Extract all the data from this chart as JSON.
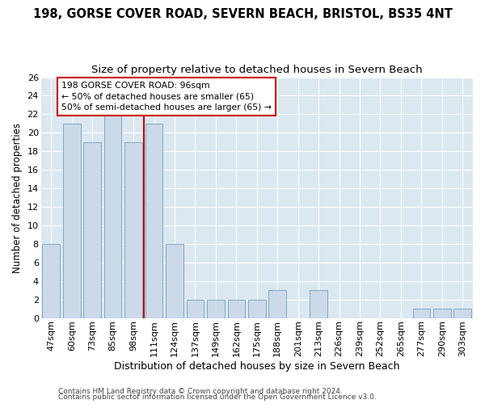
{
  "title1": "198, GORSE COVER ROAD, SEVERN BEACH, BRISTOL, BS35 4NT",
  "title2": "Size of property relative to detached houses in Severn Beach",
  "xlabel": "Distribution of detached houses by size in Severn Beach",
  "ylabel": "Number of detached properties",
  "categories": [
    "47sqm",
    "60sqm",
    "73sqm",
    "85sqm",
    "98sqm",
    "111sqm",
    "124sqm",
    "137sqm",
    "149sqm",
    "162sqm",
    "175sqm",
    "188sqm",
    "201sqm",
    "213sqm",
    "226sqm",
    "239sqm",
    "252sqm",
    "265sqm",
    "277sqm",
    "290sqm",
    "303sqm"
  ],
  "values": [
    8,
    21,
    19,
    22,
    19,
    21,
    8,
    2,
    2,
    2,
    2,
    3,
    0,
    3,
    0,
    0,
    0,
    0,
    1,
    1,
    1
  ],
  "bar_color": "#ccd9e8",
  "bar_edge_color": "#7aaac8",
  "vline_x": 4.5,
  "vline_color": "#cc0000",
  "annotation_text": "198 GORSE COVER ROAD: 96sqm\n← 50% of detached houses are smaller (65)\n50% of semi-detached houses are larger (65) →",
  "annotation_box_facecolor": "#ffffff",
  "annotation_box_edgecolor": "#cc0000",
  "ylim": [
    0,
    26
  ],
  "yticks": [
    0,
    2,
    4,
    6,
    8,
    10,
    12,
    14,
    16,
    18,
    20,
    22,
    24,
    26
  ],
  "fig_facecolor": "#ffffff",
  "ax_facecolor": "#dce8f0",
  "grid_color": "#ffffff",
  "footer1": "Contains HM Land Registry data © Crown copyright and database right 2024.",
  "footer2": "Contains public sector information licensed under the Open Government Licence v3.0.",
  "title1_fontsize": 10.5,
  "title2_fontsize": 9.5,
  "xlabel_fontsize": 9,
  "ylabel_fontsize": 8.5,
  "tick_fontsize": 8,
  "footer_fontsize": 6.5
}
